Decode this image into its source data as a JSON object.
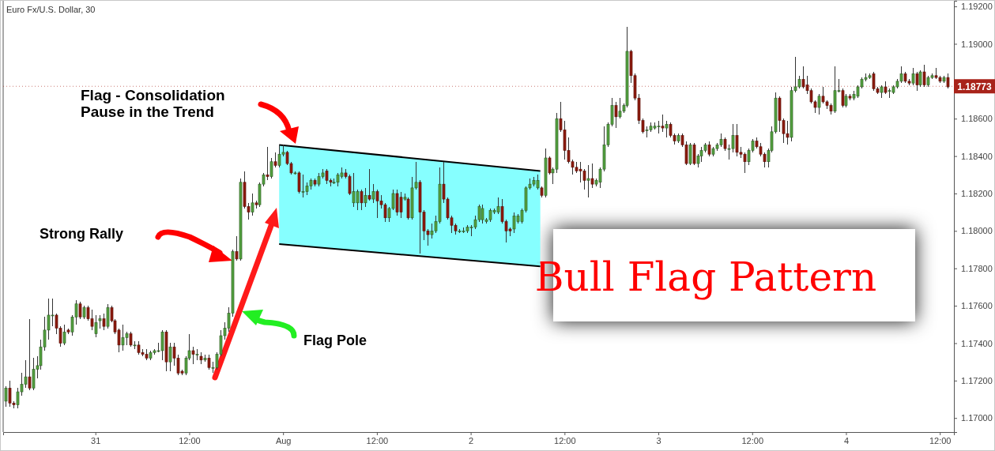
{
  "chart_data": {
    "type": "candlestick",
    "title": "Euro Fx/U.S. Dollar, 30",
    "xlim": [
      "--07-30T12:12",
      "--08-04T13:48"
    ],
    "ylim": [
      1.16925,
      1.1923
    ],
    "xticks": [
      {
        "value": "--07-31T00:00",
        "label": "31"
      },
      {
        "value": "--07-31T12:00",
        "label": "12:00"
      },
      {
        "value": "--08-01T00:00",
        "label": "Aug"
      },
      {
        "value": "--08-01T12:00",
        "label": "12:00"
      },
      {
        "value": "--08-02T00:00",
        "label": "2"
      },
      {
        "value": "--08-02T12:00",
        "label": "12:00"
      },
      {
        "value": "--08-03T00:00",
        "label": "3"
      },
      {
        "value": "--08-03T12:00",
        "label": "12:00"
      },
      {
        "value": "--08-04T00:00",
        "label": "4"
      },
      {
        "value": "--08-04T12:00",
        "label": "12:00"
      }
    ],
    "yticks": [
      {
        "value": 1.17,
        "label": "1.17000"
      },
      {
        "value": 1.172,
        "label": "1.17200"
      },
      {
        "value": 1.174,
        "label": "1.17400"
      },
      {
        "value": 1.176,
        "label": "1.17600"
      },
      {
        "value": 1.178,
        "label": "1.17800"
      },
      {
        "value": 1.18,
        "label": "1.18000"
      },
      {
        "value": 1.182,
        "label": "1.18200"
      },
      {
        "value": 1.184,
        "label": "1.18400"
      },
      {
        "value": 1.186,
        "label": "1.18600"
      },
      {
        "value": 1.188,
        "label": null
      },
      {
        "value": 1.19,
        "label": "1.19000"
      },
      {
        "value": 1.192,
        "label": "1.19200"
      }
    ],
    "x": [
      "--07-30T12:30",
      "--07-30T13:00",
      "--07-30T13:30",
      "--07-30T14:00",
      "--07-30T14:30",
      "--07-30T15:00",
      "--07-30T15:30",
      "--07-30T16:00",
      "--07-30T16:30",
      "--07-30T17:00",
      "--07-30T17:30",
      "--07-30T18:00",
      "--07-30T18:30",
      "--07-30T19:00",
      "--07-30T19:30",
      "--07-30T20:00",
      "--07-30T20:30",
      "--07-30T21:00",
      "--07-30T21:30",
      "--07-30T22:00",
      "--07-30T22:30",
      "--07-30T23:00",
      "--07-30T23:30",
      "--07-31T00:00",
      "--07-31T00:30",
      "--07-31T01:00",
      "--07-31T01:30",
      "--07-31T02:00",
      "--07-31T02:30",
      "--07-31T03:00",
      "--07-31T03:30",
      "--07-31T04:00",
      "--07-31T04:30",
      "--07-31T05:00",
      "--07-31T05:30",
      "--07-31T06:00",
      "--07-31T06:30",
      "--07-31T07:00",
      "--07-31T07:30",
      "--07-31T08:00",
      "--07-31T08:30",
      "--07-31T09:00",
      "--07-31T09:30",
      "--07-31T10:00",
      "--07-31T10:30",
      "--07-31T11:00",
      "--07-31T11:30",
      "--07-31T12:00",
      "--07-31T12:30",
      "--07-31T13:00",
      "--07-31T13:30",
      "--07-31T14:00",
      "--07-31T14:30",
      "--07-31T15:00",
      "--07-31T15:30",
      "--07-31T16:00",
      "--07-31T16:30",
      "--07-31T17:00",
      "--07-31T17:30",
      "--07-31T18:00",
      "--07-31T18:30",
      "--07-31T19:00",
      "--07-31T19:30",
      "--07-31T20:00",
      "--07-31T20:30",
      "--07-31T21:00",
      "--07-31T21:30",
      "--07-31T22:00",
      "--07-31T22:30",
      "--07-31T23:00",
      "--07-31T23:30",
      "--08-01T00:00",
      "--08-01T00:30",
      "--08-01T01:00",
      "--08-01T01:30",
      "--08-01T02:00",
      "--08-01T02:30",
      "--08-01T03:00",
      "--08-01T03:30",
      "--08-01T04:00",
      "--08-01T04:30",
      "--08-01T05:00",
      "--08-01T05:30",
      "--08-01T06:00",
      "--08-01T06:30",
      "--08-01T07:00",
      "--08-01T07:30",
      "--08-01T08:00",
      "--08-01T08:30",
      "--08-01T09:00",
      "--08-01T09:30",
      "--08-01T10:00",
      "--08-01T10:30",
      "--08-01T11:00",
      "--08-01T11:30",
      "--08-01T12:00",
      "--08-01T12:30",
      "--08-01T13:00",
      "--08-01T13:30",
      "--08-01T14:00",
      "--08-01T14:30",
      "--08-01T15:00",
      "--08-01T15:30",
      "--08-01T16:00",
      "--08-01T16:30",
      "--08-01T17:00",
      "--08-01T17:30",
      "--08-01T18:00",
      "--08-01T18:30",
      "--08-01T19:00",
      "--08-01T19:30",
      "--08-01T20:00",
      "--08-01T20:30",
      "--08-01T21:00",
      "--08-01T21:30",
      "--08-01T22:00",
      "--08-01T22:30",
      "--08-01T23:00",
      "--08-01T23:30",
      "--08-02T00:00",
      "--08-02T00:30",
      "--08-02T01:00",
      "--08-02T01:30",
      "--08-02T02:00",
      "--08-02T02:30",
      "--08-02T03:00",
      "--08-02T03:30",
      "--08-02T04:00",
      "--08-02T04:30",
      "--08-02T05:00",
      "--08-02T05:30",
      "--08-02T06:00",
      "--08-02T06:30",
      "--08-02T07:00",
      "--08-02T07:30",
      "--08-02T08:00",
      "--08-02T08:30",
      "--08-02T09:00",
      "--08-02T09:30",
      "--08-02T10:00",
      "--08-02T10:30",
      "--08-02T11:00",
      "--08-02T11:30",
      "--08-02T12:00",
      "--08-02T12:30",
      "--08-02T13:00",
      "--08-02T13:30",
      "--08-02T14:00",
      "--08-02T14:30",
      "--08-02T15:00",
      "--08-02T15:30",
      "--08-02T16:00",
      "--08-02T16:30",
      "--08-02T17:00",
      "--08-02T17:30",
      "--08-02T18:00",
      "--08-02T18:30",
      "--08-02T19:00",
      "--08-02T19:30",
      "--08-02T20:00",
      "--08-02T20:30",
      "--08-02T21:00",
      "--08-02T21:30",
      "--08-02T22:00",
      "--08-02T22:30",
      "--08-02T23:00",
      "--08-02T23:30",
      "--08-03T00:00",
      "--08-03T00:30",
      "--08-03T01:00",
      "--08-03T01:30",
      "--08-03T02:00",
      "--08-03T02:30",
      "--08-03T03:00",
      "--08-03T03:30",
      "--08-03T04:00",
      "--08-03T04:30",
      "--08-03T05:00",
      "--08-03T05:30",
      "--08-03T06:00",
      "--08-03T06:30",
      "--08-03T07:00",
      "--08-03T07:30",
      "--08-03T08:00",
      "--08-03T08:30",
      "--08-03T09:00",
      "--08-03T09:30",
      "--08-03T10:00",
      "--08-03T10:30",
      "--08-03T11:00",
      "--08-03T11:30",
      "--08-03T12:00",
      "--08-03T12:30",
      "--08-03T13:00",
      "--08-03T13:30",
      "--08-03T14:00",
      "--08-03T14:30",
      "--08-03T15:00",
      "--08-03T15:30",
      "--08-03T16:00",
      "--08-03T16:30",
      "--08-03T17:00",
      "--08-03T17:30",
      "--08-03T18:00",
      "--08-03T18:30",
      "--08-03T19:00",
      "--08-03T19:30",
      "--08-03T20:00",
      "--08-03T20:30",
      "--08-03T21:00",
      "--08-03T21:30",
      "--08-03T22:00",
      "--08-03T22:30",
      "--08-03T23:00",
      "--08-03T23:30",
      "--08-04T00:00",
      "--08-04T00:30",
      "--08-04T01:00",
      "--08-04T01:30",
      "--08-04T02:00",
      "--08-04T02:30",
      "--08-04T03:00",
      "--08-04T03:30",
      "--08-04T04:00",
      "--08-04T04:30",
      "--08-04T05:00",
      "--08-04T05:30",
      "--08-04T06:00",
      "--08-04T06:30",
      "--08-04T07:00",
      "--08-04T07:30",
      "--08-04T08:00",
      "--08-04T08:30",
      "--08-04T09:00",
      "--08-04T09:30",
      "--08-04T10:00",
      "--08-04T10:30",
      "--08-04T11:00",
      "--08-04T11:30",
      "--08-04T12:00",
      "--08-04T12:30",
      "--08-04T13:00"
    ],
    "ohlc": [
      [
        1.1709,
        1.1717,
        1.1706,
        1.1716
      ],
      [
        1.1716,
        1.172,
        1.1706,
        1.1708
      ],
      [
        1.1708,
        1.1709,
        1.1705,
        1.1707
      ],
      [
        1.1707,
        1.1716,
        1.1705,
        1.1714
      ],
      [
        1.1714,
        1.1724,
        1.1712,
        1.1718
      ],
      [
        1.1718,
        1.1731,
        1.1716,
        1.1722
      ],
      [
        1.1722,
        1.1753,
        1.1715,
        1.1716
      ],
      [
        1.1716,
        1.1732,
        1.1715,
        1.1726
      ],
      [
        1.1726,
        1.1733,
        1.1721,
        1.1728
      ],
      [
        1.1728,
        1.1742,
        1.1726,
        1.1738
      ],
      [
        1.1738,
        1.1754,
        1.1736,
        1.1747
      ],
      [
        1.1747,
        1.1764,
        1.1742,
        1.1755
      ],
      [
        1.1755,
        1.1764,
        1.1749,
        1.1755
      ],
      [
        1.1755,
        1.1756,
        1.1745,
        1.1748
      ],
      [
        1.1748,
        1.1749,
        1.1738,
        1.174
      ],
      [
        1.174,
        1.175,
        1.1739,
        1.1746
      ],
      [
        1.1747,
        1.1748,
        1.1745,
        1.1746
      ],
      [
        1.1746,
        1.1755,
        1.1744,
        1.1754
      ],
      [
        1.1754,
        1.1763,
        1.175,
        1.1761
      ],
      [
        1.1761,
        1.1762,
        1.1753,
        1.1754
      ],
      [
        1.1754,
        1.176,
        1.1753,
        1.1759
      ],
      [
        1.1759,
        1.176,
        1.1752,
        1.1753
      ],
      [
        1.1753,
        1.1758,
        1.1747,
        1.1749
      ],
      [
        1.1745,
        1.1755,
        1.1743,
        1.1751
      ],
      [
        1.1752,
        1.1755,
        1.1748,
        1.1753
      ],
      [
        1.1753,
        1.1756,
        1.1747,
        1.1749
      ],
      [
        1.1749,
        1.1761,
        1.1748,
        1.1759
      ],
      [
        1.1759,
        1.176,
        1.1751,
        1.1752
      ],
      [
        1.1752,
        1.1753,
        1.1745,
        1.1746
      ],
      [
        1.1747,
        1.1748,
        1.1735,
        1.1739
      ],
      [
        1.1739,
        1.175,
        1.1736,
        1.1743
      ],
      [
        1.1743,
        1.1746,
        1.1739,
        1.1745
      ],
      [
        1.1745,
        1.1746,
        1.1738,
        1.1739
      ],
      [
        1.1739,
        1.1741,
        1.1737,
        1.1739
      ],
      [
        1.1739,
        1.1741,
        1.1734,
        1.1735
      ],
      [
        1.1735,
        1.1737,
        1.1733,
        1.1734
      ],
      [
        1.1734,
        1.1737,
        1.1731,
        1.1732
      ],
      [
        1.1732,
        1.1736,
        1.1731,
        1.1735
      ],
      [
        1.1735,
        1.1737,
        1.1734,
        1.1736
      ],
      [
        1.1736,
        1.174,
        1.1735,
        1.1736
      ],
      [
        1.1736,
        1.1747,
        1.1731,
        1.1746
      ],
      [
        1.1746,
        1.1747,
        1.1725,
        1.173
      ],
      [
        1.173,
        1.174,
        1.1725,
        1.1738
      ],
      [
        1.1738,
        1.174,
        1.1728,
        1.1732
      ],
      [
        1.1732,
        1.1734,
        1.1723,
        1.1724
      ],
      [
        1.1725,
        1.1726,
        1.1723,
        1.1724
      ],
      [
        1.1724,
        1.1733,
        1.1723,
        1.1732
      ],
      [
        1.1732,
        1.1745,
        1.1731,
        1.1736
      ],
      [
        1.1736,
        1.1738,
        1.1729,
        1.1734
      ],
      [
        1.1734,
        1.1737,
        1.1731,
        1.1734
      ],
      [
        1.1733,
        1.1735,
        1.1729,
        1.1731
      ],
      [
        1.1731,
        1.1734,
        1.173,
        1.1732
      ],
      [
        1.1732,
        1.1734,
        1.1726,
        1.1727
      ],
      [
        1.1727,
        1.173,
        1.1724,
        1.1727
      ],
      [
        1.1727,
        1.1735,
        1.1726,
        1.1734
      ],
      [
        1.1734,
        1.1747,
        1.1733,
        1.1744
      ],
      [
        1.1744,
        1.1751,
        1.1742,
        1.1748
      ],
      [
        1.1748,
        1.1759,
        1.1746,
        1.1756
      ],
      [
        1.1756,
        1.179,
        1.1754,
        1.1789
      ],
      [
        1.1789,
        1.1797,
        1.1784,
        1.1785
      ],
      [
        1.1785,
        1.1828,
        1.1784,
        1.1826
      ],
      [
        1.1826,
        1.1832,
        1.1812,
        1.1813
      ],
      [
        1.1813,
        1.1815,
        1.1806,
        1.181
      ],
      [
        1.181,
        1.182,
        1.1808,
        1.1815
      ],
      [
        1.1815,
        1.1816,
        1.1812,
        1.1814
      ],
      [
        1.1814,
        1.1826,
        1.1813,
        1.1825
      ],
      [
        1.1825,
        1.1831,
        1.1824,
        1.183
      ],
      [
        1.183,
        1.1845,
        1.1827,
        1.1829
      ],
      [
        1.1829,
        1.1839,
        1.1828,
        1.1837
      ],
      [
        1.1837,
        1.1842,
        1.1834,
        1.1835
      ],
      [
        1.1835,
        1.1846,
        1.1834,
        1.1841
      ],
      [
        1.1841,
        1.1846,
        1.184,
        1.1842
      ],
      [
        1.1842,
        1.1843,
        1.1835,
        1.1836
      ],
      [
        1.1836,
        1.1837,
        1.183,
        1.1831
      ],
      [
        1.1831,
        1.1832,
        1.183,
        1.1831
      ],
      [
        1.1831,
        1.1832,
        1.182,
        1.1821
      ],
      [
        1.1821,
        1.183,
        1.1818,
        1.1821
      ],
      [
        1.1821,
        1.1826,
        1.1819,
        1.1824
      ],
      [
        1.1824,
        1.1828,
        1.1822,
        1.1827
      ],
      [
        1.1827,
        1.1828,
        1.1824,
        1.1825
      ],
      [
        1.1825,
        1.1831,
        1.1824,
        1.1829
      ],
      [
        1.1829,
        1.1833,
        1.1828,
        1.1831
      ],
      [
        1.1832,
        1.1833,
        1.1825,
        1.1827
      ],
      [
        1.1827,
        1.1828,
        1.1824,
        1.1826
      ],
      [
        1.1826,
        1.1828,
        1.1825,
        1.1826
      ],
      [
        1.1826,
        1.1831,
        1.1824,
        1.183
      ],
      [
        1.1829,
        1.1834,
        1.1828,
        1.1831
      ],
      [
        1.1831,
        1.1833,
        1.1828,
        1.1829
      ],
      [
        1.1829,
        1.183,
        1.1819,
        1.182
      ],
      [
        1.1815,
        1.1831,
        1.1813,
        1.1821
      ],
      [
        1.1815,
        1.1822,
        1.1811,
        1.1821
      ],
      [
        1.1821,
        1.1822,
        1.1811,
        1.1815
      ],
      [
        1.1815,
        1.1823,
        1.1813,
        1.1819
      ],
      [
        1.1819,
        1.1833,
        1.1816,
        1.1817
      ],
      [
        1.1817,
        1.1825,
        1.1815,
        1.1821
      ],
      [
        1.1821,
        1.1822,
        1.1807,
        1.1816
      ],
      [
        1.1816,
        1.1819,
        1.1812,
        1.1814
      ],
      [
        1.1814,
        1.1815,
        1.1805,
        1.1807
      ],
      [
        1.1807,
        1.1813,
        1.1805,
        1.1812
      ],
      [
        1.1812,
        1.1822,
        1.1811,
        1.182
      ],
      [
        1.182,
        1.1822,
        1.1808,
        1.181
      ],
      [
        1.1818,
        1.1821,
        1.1807,
        1.181
      ],
      [
        1.1817,
        1.182,
        1.1816,
        1.1818
      ],
      [
        1.1817,
        1.1818,
        1.1806,
        1.1807
      ],
      [
        1.1807,
        1.1829,
        1.1806,
        1.1823
      ],
      [
        1.1823,
        1.1837,
        1.1822,
        1.1826
      ],
      [
        1.1826,
        1.1827,
        1.1788,
        1.181
      ],
      [
        1.181,
        1.1811,
        1.1795,
        1.18
      ],
      [
        1.18,
        1.1801,
        1.1792,
        1.1798
      ],
      [
        1.1798,
        1.1804,
        1.1796,
        1.18
      ],
      [
        1.18,
        1.1808,
        1.1799,
        1.1805
      ],
      [
        1.1805,
        1.1834,
        1.1804,
        1.1825
      ],
      [
        1.1825,
        1.1837,
        1.1815,
        1.1817
      ],
      [
        1.1817,
        1.1818,
        1.1806,
        1.1807
      ],
      [
        1.1807,
        1.1808,
        1.1799,
        1.1803
      ],
      [
        1.1803,
        1.1804,
        1.1798,
        1.18
      ],
      [
        1.18,
        1.1801,
        1.1799,
        1.18
      ],
      [
        1.18,
        1.1802,
        1.1799,
        1.18
      ],
      [
        1.18,
        1.1803,
        1.1799,
        1.1802
      ],
      [
        1.1802,
        1.1803,
        1.1797,
        1.1802
      ],
      [
        1.1802,
        1.1808,
        1.1801,
        1.1806
      ],
      [
        1.1806,
        1.1814,
        1.1805,
        1.1813
      ],
      [
        1.1806,
        1.1814,
        1.1804,
        1.1812
      ],
      [
        1.1805,
        1.1807,
        1.1804,
        1.1806
      ],
      [
        1.1806,
        1.1812,
        1.1805,
        1.1811
      ],
      [
        1.181,
        1.1812,
        1.1809,
        1.1811
      ],
      [
        1.181,
        1.1818,
        1.1809,
        1.1813
      ],
      [
        1.1813,
        1.1817,
        1.1804,
        1.1805
      ],
      [
        1.1805,
        1.1806,
        1.1794,
        1.18
      ],
      [
        1.1801,
        1.1802,
        1.1797,
        1.18
      ],
      [
        1.1801,
        1.181,
        1.1799,
        1.1808
      ],
      [
        1.1805,
        1.1809,
        1.1804,
        1.1808
      ],
      [
        1.1805,
        1.1812,
        1.1804,
        1.1811
      ],
      [
        1.1811,
        1.1824,
        1.181,
        1.1823
      ],
      [
        1.1823,
        1.1828,
        1.1822,
        1.1825
      ],
      [
        1.1825,
        1.1829,
        1.1824,
        1.1827
      ],
      [
        1.1823,
        1.183,
        1.1822,
        1.1827
      ],
      [
        1.1823,
        1.1824,
        1.1818,
        1.1819
      ],
      [
        1.1819,
        1.1844,
        1.1818,
        1.1839
      ],
      [
        1.1839,
        1.184,
        1.183,
        1.1831
      ],
      [
        1.1831,
        1.1834,
        1.1825,
        1.1833
      ],
      [
        1.1833,
        1.1863,
        1.1831,
        1.186
      ],
      [
        1.186,
        1.1869,
        1.1853,
        1.1854
      ],
      [
        1.1854,
        1.1859,
        1.1838,
        1.1843
      ],
      [
        1.1843,
        1.185,
        1.1836,
        1.1837
      ],
      [
        1.1837,
        1.1838,
        1.183,
        1.1834
      ],
      [
        1.1834,
        1.1837,
        1.1831,
        1.1832
      ],
      [
        1.1833,
        1.1837,
        1.1826,
        1.1832
      ],
      [
        1.1832,
        1.1833,
        1.1822,
        1.1827
      ],
      [
        1.1827,
        1.1835,
        1.1818,
        1.1828
      ],
      [
        1.1828,
        1.1836,
        1.1823,
        1.1825
      ],
      [
        1.1825,
        1.1828,
        1.1824,
        1.1827
      ],
      [
        1.1826,
        1.1834,
        1.1823,
        1.1833
      ],
      [
        1.1833,
        1.1856,
        1.1832,
        1.1846
      ],
      [
        1.1846,
        1.1858,
        1.1845,
        1.1857
      ],
      [
        1.1857,
        1.1871,
        1.1856,
        1.1867
      ],
      [
        1.1867,
        1.1869,
        1.1855,
        1.1861
      ],
      [
        1.1861,
        1.1871,
        1.186,
        1.1864
      ],
      [
        1.1864,
        1.1868,
        1.1863,
        1.1867
      ],
      [
        1.1867,
        1.1909,
        1.1866,
        1.1896
      ],
      [
        1.1896,
        1.1897,
        1.1879,
        1.1883
      ],
      [
        1.1883,
        1.1884,
        1.187,
        1.1871
      ],
      [
        1.1871,
        1.1873,
        1.1857,
        1.1859
      ],
      [
        1.1859,
        1.186,
        1.1852,
        1.1853
      ],
      [
        1.1854,
        1.1856,
        1.185,
        1.1854
      ],
      [
        1.1854,
        1.1858,
        1.1853,
        1.1856
      ],
      [
        1.1855,
        1.1858,
        1.1854,
        1.1856
      ],
      [
        1.1856,
        1.1859,
        1.1852,
        1.1856
      ],
      [
        1.1856,
        1.1862,
        1.1853,
        1.1855
      ],
      [
        1.1855,
        1.1859,
        1.185,
        1.1857
      ],
      [
        1.1857,
        1.1858,
        1.185,
        1.1851
      ],
      [
        1.1851,
        1.1852,
        1.1846,
        1.1848
      ],
      [
        1.1848,
        1.1852,
        1.1847,
        1.1851
      ],
      [
        1.1851,
        1.1852,
        1.1845,
        1.1846
      ],
      [
        1.1846,
        1.1848,
        1.1835,
        1.1836
      ],
      [
        1.1836,
        1.1847,
        1.1835,
        1.1846
      ],
      [
        1.1846,
        1.1847,
        1.1835,
        1.1836
      ],
      [
        1.1836,
        1.1841,
        1.1834,
        1.184
      ],
      [
        1.184,
        1.1845,
        1.1837,
        1.1843
      ],
      [
        1.1843,
        1.1847,
        1.1842,
        1.1846
      ],
      [
        1.1846,
        1.1848,
        1.184,
        1.1841
      ],
      [
        1.1841,
        1.1845,
        1.184,
        1.1844
      ],
      [
        1.1844,
        1.1847,
        1.1843,
        1.1846
      ],
      [
        1.1846,
        1.1852,
        1.1845,
        1.1849
      ],
      [
        1.1849,
        1.185,
        1.1843,
        1.1844
      ],
      [
        1.1844,
        1.1846,
        1.1838,
        1.1844
      ],
      [
        1.1844,
        1.1857,
        1.1842,
        1.1851
      ],
      [
        1.1851,
        1.1857,
        1.184,
        1.1842
      ],
      [
        1.1842,
        1.1845,
        1.1839,
        1.1841
      ],
      [
        1.1841,
        1.1842,
        1.1831,
        1.1837
      ],
      [
        1.1837,
        1.1844,
        1.1835,
        1.1843
      ],
      [
        1.1843,
        1.1849,
        1.1842,
        1.1848
      ],
      [
        1.1848,
        1.185,
        1.1844,
        1.1845
      ],
      [
        1.1845,
        1.1847,
        1.184,
        1.1841
      ],
      [
        1.1841,
        1.1842,
        1.1834,
        1.1837
      ],
      [
        1.1837,
        1.1844,
        1.1834,
        1.1843
      ],
      [
        1.1843,
        1.1856,
        1.1842,
        1.1853
      ],
      [
        1.1853,
        1.1874,
        1.1852,
        1.1871
      ],
      [
        1.1871,
        1.1872,
        1.1853,
        1.1859
      ],
      [
        1.1859,
        1.186,
        1.1847,
        1.1852
      ],
      [
        1.1852,
        1.1859,
        1.1846,
        1.185
      ],
      [
        1.185,
        1.1877,
        1.1848,
        1.1875
      ],
      [
        1.1875,
        1.1893,
        1.1874,
        1.1877
      ],
      [
        1.1877,
        1.1883,
        1.1876,
        1.1881
      ],
      [
        1.1881,
        1.1888,
        1.1876,
        1.1877
      ],
      [
        1.1878,
        1.1883,
        1.1873,
        1.1875
      ],
      [
        1.1875,
        1.1876,
        1.1868,
        1.1869
      ],
      [
        1.1869,
        1.187,
        1.1863,
        1.1866
      ],
      [
        1.1866,
        1.1873,
        1.1862,
        1.1872
      ],
      [
        1.1872,
        1.1877,
        1.1868,
        1.1869
      ],
      [
        1.1869,
        1.187,
        1.1865,
        1.1867
      ],
      [
        1.1867,
        1.1868,
        1.1862,
        1.1864
      ],
      [
        1.1864,
        1.1888,
        1.1863,
        1.1875
      ],
      [
        1.1875,
        1.1881,
        1.1874,
        1.1875
      ],
      [
        1.1875,
        1.1876,
        1.1866,
        1.1867
      ],
      [
        1.1867,
        1.1873,
        1.1866,
        1.1872
      ],
      [
        1.1872,
        1.1873,
        1.187,
        1.1871
      ],
      [
        1.1871,
        1.1875,
        1.187,
        1.1873
      ],
      [
        1.1872,
        1.1878,
        1.1871,
        1.1877
      ],
      [
        1.1877,
        1.1882,
        1.1876,
        1.1881
      ],
      [
        1.1881,
        1.1884,
        1.188,
        1.1882
      ],
      [
        1.1882,
        1.1884,
        1.1881,
        1.1883
      ],
      [
        1.1884,
        1.1885,
        1.1875,
        1.1876
      ],
      [
        1.1876,
        1.1877,
        1.1873,
        1.1874
      ],
      [
        1.1874,
        1.1878,
        1.1871,
        1.1877
      ],
      [
        1.1877,
        1.188,
        1.1873,
        1.1874
      ],
      [
        1.1875,
        1.1876,
        1.1871,
        1.1875
      ],
      [
        1.1874,
        1.1878,
        1.1873,
        1.1877
      ],
      [
        1.1877,
        1.1881,
        1.1876,
        1.188
      ],
      [
        1.188,
        1.1888,
        1.1879,
        1.1884
      ],
      [
        1.1884,
        1.1885,
        1.1879,
        1.188
      ],
      [
        1.188,
        1.1881,
        1.1878,
        1.1879
      ],
      [
        1.1879,
        1.1887,
        1.1878,
        1.1884
      ],
      [
        1.1884,
        1.1885,
        1.1875,
        1.1878
      ],
      [
        1.1878,
        1.1886,
        1.1877,
        1.1885
      ],
      [
        1.1885,
        1.1889,
        1.1877,
        1.1878
      ],
      [
        1.1878,
        1.1883,
        1.1877,
        1.1882
      ],
      [
        1.1882,
        1.1884,
        1.1881,
        1.1883
      ],
      [
        1.1883,
        1.1887,
        1.1881,
        1.1882
      ],
      [
        1.1882,
        1.1883,
        1.1879,
        1.188
      ],
      [
        1.188,
        1.1883,
        1.1879,
        1.1882
      ],
      [
        1.1882,
        1.1884,
        1.1876,
        1.1877
      ]
    ],
    "series": [
      {
        "type": "line",
        "color": "#000000",
        "x": [
          "--07-31T23:30",
          "--08-02T08:54"
        ],
        "values": [
          1.1846,
          1.1832
        ],
        "lower": [
          1.1793,
          1.1781
        ],
        "upper": [
          1.1846,
          1.1832
        ]
      },
      {
        "type": "line",
        "color": "#000000",
        "x": [
          "--07-31T23:30",
          "--08-02T08:54"
        ],
        "values": [
          1.1793,
          1.1781
        ]
      }
    ],
    "ref_lines": [
      {
        "axis": "y",
        "value": 1.18773,
        "label": "1.18773",
        "color": "#a8231a"
      }
    ],
    "annotations": [
      "Flag - Consolidation\nPause in the Trend",
      "Strong Rally",
      "Flag Pole",
      "Bull Flag Pattern"
    ]
  }
}
